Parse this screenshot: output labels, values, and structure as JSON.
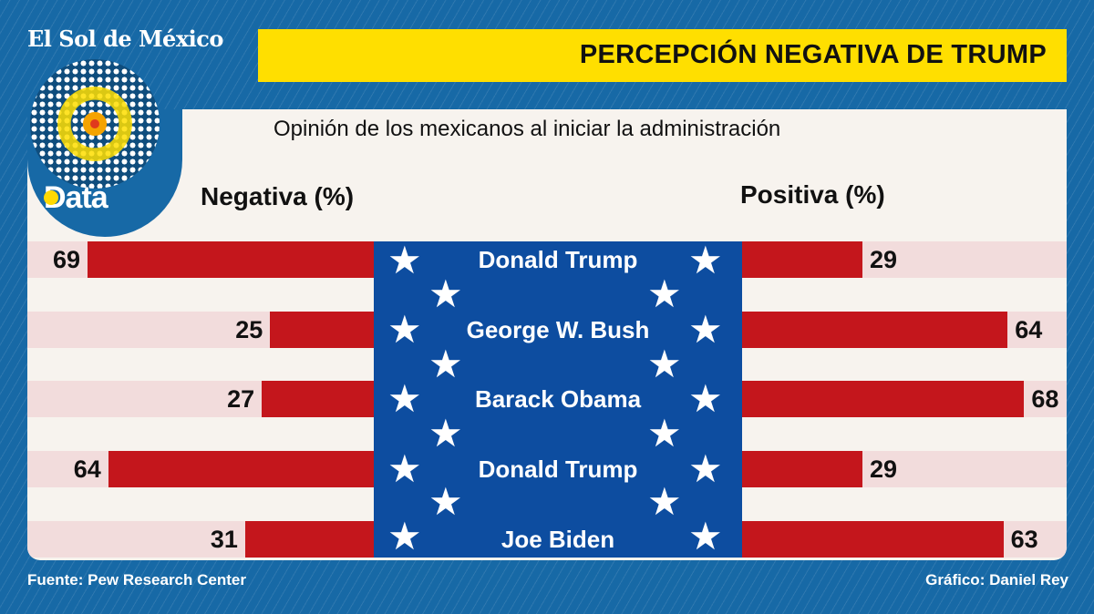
{
  "brand": "El Sol de México",
  "logo_text": "Data",
  "title": "PERCEPCIÓN NEGATIVA DE TRUMP",
  "footer": {
    "source": "Fuente: Pew Research Center",
    "credit": "Gráfico: Daniel Rey"
  },
  "colors": {
    "background": "#1769a6",
    "header": "#ffdf00",
    "bar": "#c4161c",
    "center": "#0d4da0",
    "band": "#f2dcdc"
  },
  "chart_data": {
    "type": "bar",
    "title": "Opinión de los mexicanos al iniciar la administración",
    "categories": [
      "Donald Trump",
      "George W. Bush",
      "Barack Obama",
      "Donald Trump",
      "Joe Biden"
    ],
    "series": [
      {
        "name": "Negativa (%)",
        "values": [
          69,
          25,
          27,
          64,
          31
        ]
      },
      {
        "name": "Positiva (%)",
        "values": [
          29,
          64,
          68,
          29,
          63
        ]
      }
    ],
    "orientation": "horizontal-diverging",
    "grid": false
  }
}
